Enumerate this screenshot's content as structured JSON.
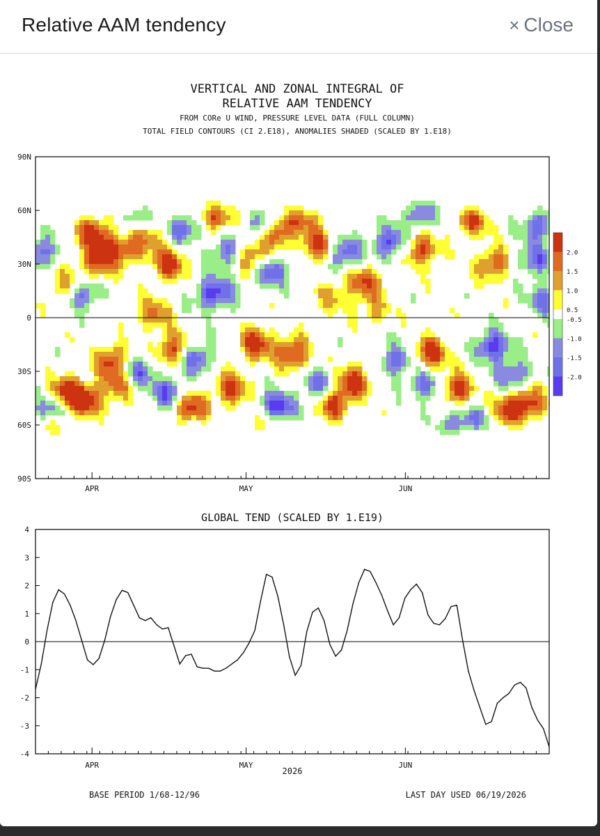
{
  "modal": {
    "title": "Relative AAM tendency",
    "close_label": "Close",
    "close_icon": "close-icon"
  },
  "figure": {
    "title_line1": "VERTICAL AND ZONAL INTEGRAL OF",
    "title_line2": "RELATIVE AAM TENDENCY",
    "subtitle1": "FROM CORe U WIND, PRESSURE LEVEL DATA (FULL COLUMN)",
    "subtitle2": "TOTAL FIELD CONTOURS (CI 2.E18),  ANOMALIES SHADED (SCALED BY 1.E18)",
    "base_period": "BASE PERIOD  1/68-12/96",
    "last_day": "LAST DAY USED 06/19/2026"
  },
  "chart_data": [
    {
      "type": "heatmap",
      "y_tick_labels": [
        "90N",
        "60N",
        "30N",
        "0",
        "30S",
        "60S",
        "90S"
      ],
      "y_tick_values": [
        90,
        60,
        30,
        0,
        -30,
        -60,
        -90
      ],
      "x_tick_labels": [
        "APR",
        "MAY",
        "JUN"
      ],
      "ylim": [
        -90,
        90
      ],
      "colorbar": {
        "positive_labels": [
          "2.0",
          "1.5",
          "1.0",
          "0.5"
        ],
        "negative_labels": [
          "-0.5",
          "-1.0",
          "-1.5",
          "-2.0"
        ],
        "positive_colors": [
          "#cc3311",
          "#e06a22",
          "#e0a030",
          "#ffff33"
        ],
        "negative_colors": [
          "#99ee88",
          "#8a8ae0",
          "#7070e8",
          "#5a3cf0"
        ]
      },
      "anomaly_blobs": [
        {
          "day": 11,
          "lat": 48,
          "v": 2.2
        },
        {
          "day": 12,
          "lat": 30,
          "v": 2.0
        },
        {
          "day": 14,
          "lat": 40,
          "v": 1.2
        },
        {
          "day": 6,
          "lat": 18,
          "v": 1.6
        },
        {
          "day": 1,
          "lat": 36,
          "v": -1.8
        },
        {
          "day": 9,
          "lat": 14,
          "v": -2.1
        },
        {
          "day": 6,
          "lat": -42,
          "v": 2.4
        },
        {
          "day": 10,
          "lat": -46,
          "v": 2.3
        },
        {
          "day": 3,
          "lat": -52,
          "v": -1.9
        },
        {
          "day": 15,
          "lat": -24,
          "v": 2.2
        },
        {
          "day": 16,
          "lat": -38,
          "v": 1.6
        },
        {
          "day": 20,
          "lat": -30,
          "v": -1.8
        },
        {
          "day": 18,
          "lat": 38,
          "v": 1.8
        },
        {
          "day": 22,
          "lat": 48,
          "v": 1.6
        },
        {
          "day": 26,
          "lat": 30,
          "v": 2.4
        },
        {
          "day": 29,
          "lat": 50,
          "v": -2.0
        },
        {
          "day": 23,
          "lat": 2,
          "v": 1.6
        },
        {
          "day": 27,
          "lat": -18,
          "v": 2.4
        },
        {
          "day": 31,
          "lat": -22,
          "v": -2.2
        },
        {
          "day": 30,
          "lat": -50,
          "v": 2.4
        },
        {
          "day": 26,
          "lat": -42,
          "v": -2.0
        },
        {
          "day": 35,
          "lat": 58,
          "v": 2.4
        },
        {
          "day": 37,
          "lat": 36,
          "v": -1.8
        },
        {
          "day": 36,
          "lat": 14,
          "v": -1.6
        },
        {
          "day": 38,
          "lat": -40,
          "v": 2.2
        },
        {
          "day": 42,
          "lat": 34,
          "v": 2.0
        },
        {
          "day": 44,
          "lat": 52,
          "v": -1.6
        },
        {
          "day": 43,
          "lat": -14,
          "v": 2.4
        },
        {
          "day": 47,
          "lat": 48,
          "v": 2.4
        },
        {
          "day": 46,
          "lat": 26,
          "v": -2.0
        },
        {
          "day": 47,
          "lat": -50,
          "v": -2.4
        },
        {
          "day": 50,
          "lat": -20,
          "v": 2.4
        },
        {
          "day": 52,
          "lat": 56,
          "v": 1.6
        },
        {
          "day": 55,
          "lat": 40,
          "v": 2.2
        },
        {
          "day": 55,
          "lat": -38,
          "v": -1.8
        },
        {
          "day": 58,
          "lat": -48,
          "v": 2.4
        },
        {
          "day": 60,
          "lat": 36,
          "v": -2.2
        },
        {
          "day": 62,
          "lat": -36,
          "v": 2.4
        },
        {
          "day": 64,
          "lat": 20,
          "v": 2.0
        },
        {
          "day": 69,
          "lat": 42,
          "v": -2.2
        },
        {
          "day": 70,
          "lat": -24,
          "v": -1.8
        },
        {
          "day": 75,
          "lat": 60,
          "v": -2.2
        },
        {
          "day": 75,
          "lat": 38,
          "v": 2.2
        },
        {
          "day": 77,
          "lat": -20,
          "v": 2.4
        },
        {
          "day": 76,
          "lat": -38,
          "v": -1.8
        },
        {
          "day": 82,
          "lat": -40,
          "v": 2.4
        },
        {
          "day": 81,
          "lat": -62,
          "v": -2.0
        },
        {
          "day": 85,
          "lat": 54,
          "v": 2.0
        },
        {
          "day": 89,
          "lat": 30,
          "v": 2.0
        },
        {
          "day": 89,
          "lat": -16,
          "v": -2.4
        },
        {
          "day": 93,
          "lat": -32,
          "v": -1.8
        },
        {
          "day": 92,
          "lat": -52,
          "v": 2.4
        },
        {
          "day": 97,
          "lat": 32,
          "v": -1.8
        },
        {
          "day": 96,
          "lat": -48,
          "v": 2.2
        },
        {
          "day": 98,
          "lat": 52,
          "v": -2.0
        },
        {
          "day": 99,
          "lat": 10,
          "v": -1.6
        },
        {
          "day": 4,
          "lat": -62,
          "v": 1.6
        },
        {
          "day": 20,
          "lat": 54,
          "v": -1.4
        },
        {
          "day": 44,
          "lat": -62,
          "v": 1.4
        },
        {
          "day": 66,
          "lat": 4,
          "v": 1.2
        },
        {
          "day": 86,
          "lat": -58,
          "v": -1.4
        },
        {
          "day": 33,
          "lat": 12,
          "v": -1.2
        },
        {
          "day": 58,
          "lat": 12,
          "v": 1.2
        }
      ]
    },
    {
      "type": "line",
      "title": "GLOBAL TEND (SCALED BY 1.E19)",
      "xlabel": "2026",
      "x_tick_labels": [
        "APR",
        "MAY",
        "JUN"
      ],
      "y_tick_labels": [
        "4",
        "3",
        "2",
        "1",
        "0",
        "-1",
        "-2",
        "-3",
        "-4"
      ],
      "ylim": [
        -4,
        4
      ],
      "series": [
        {
          "values": [
            -1.7,
            -0.8,
            0.4,
            1.4,
            1.85,
            1.7,
            1.3,
            0.75,
            0.05,
            -0.65,
            -0.82,
            -0.6,
            0.05,
            0.9,
            1.5,
            1.83,
            1.75,
            1.3,
            0.85,
            0.75,
            0.85,
            0.6,
            0.45,
            0.5,
            -0.15,
            -0.8,
            -0.5,
            -0.45,
            -0.9,
            -0.95,
            -0.95,
            -1.05,
            -1.05,
            -0.95,
            -0.8,
            -0.65,
            -0.4,
            -0.05,
            0.4,
            1.45,
            2.4,
            2.3,
            1.6,
            0.6,
            -0.55,
            -1.2,
            -0.85,
            0.35,
            1.05,
            1.2,
            0.75,
            -0.1,
            -0.52,
            -0.3,
            0.4,
            1.35,
            2.1,
            2.58,
            2.5,
            2.1,
            1.65,
            1.1,
            0.6,
            0.85,
            1.55,
            1.85,
            2.05,
            1.75,
            0.95,
            0.65,
            0.6,
            0.82,
            1.25,
            1.3,
            0.05,
            -1.05,
            -1.75,
            -2.35,
            -2.95,
            -2.85,
            -2.2,
            -2.0,
            -1.85,
            -1.55,
            -1.45,
            -1.65,
            -2.35,
            -2.8,
            -3.1,
            -3.75
          ]
        }
      ]
    }
  ]
}
